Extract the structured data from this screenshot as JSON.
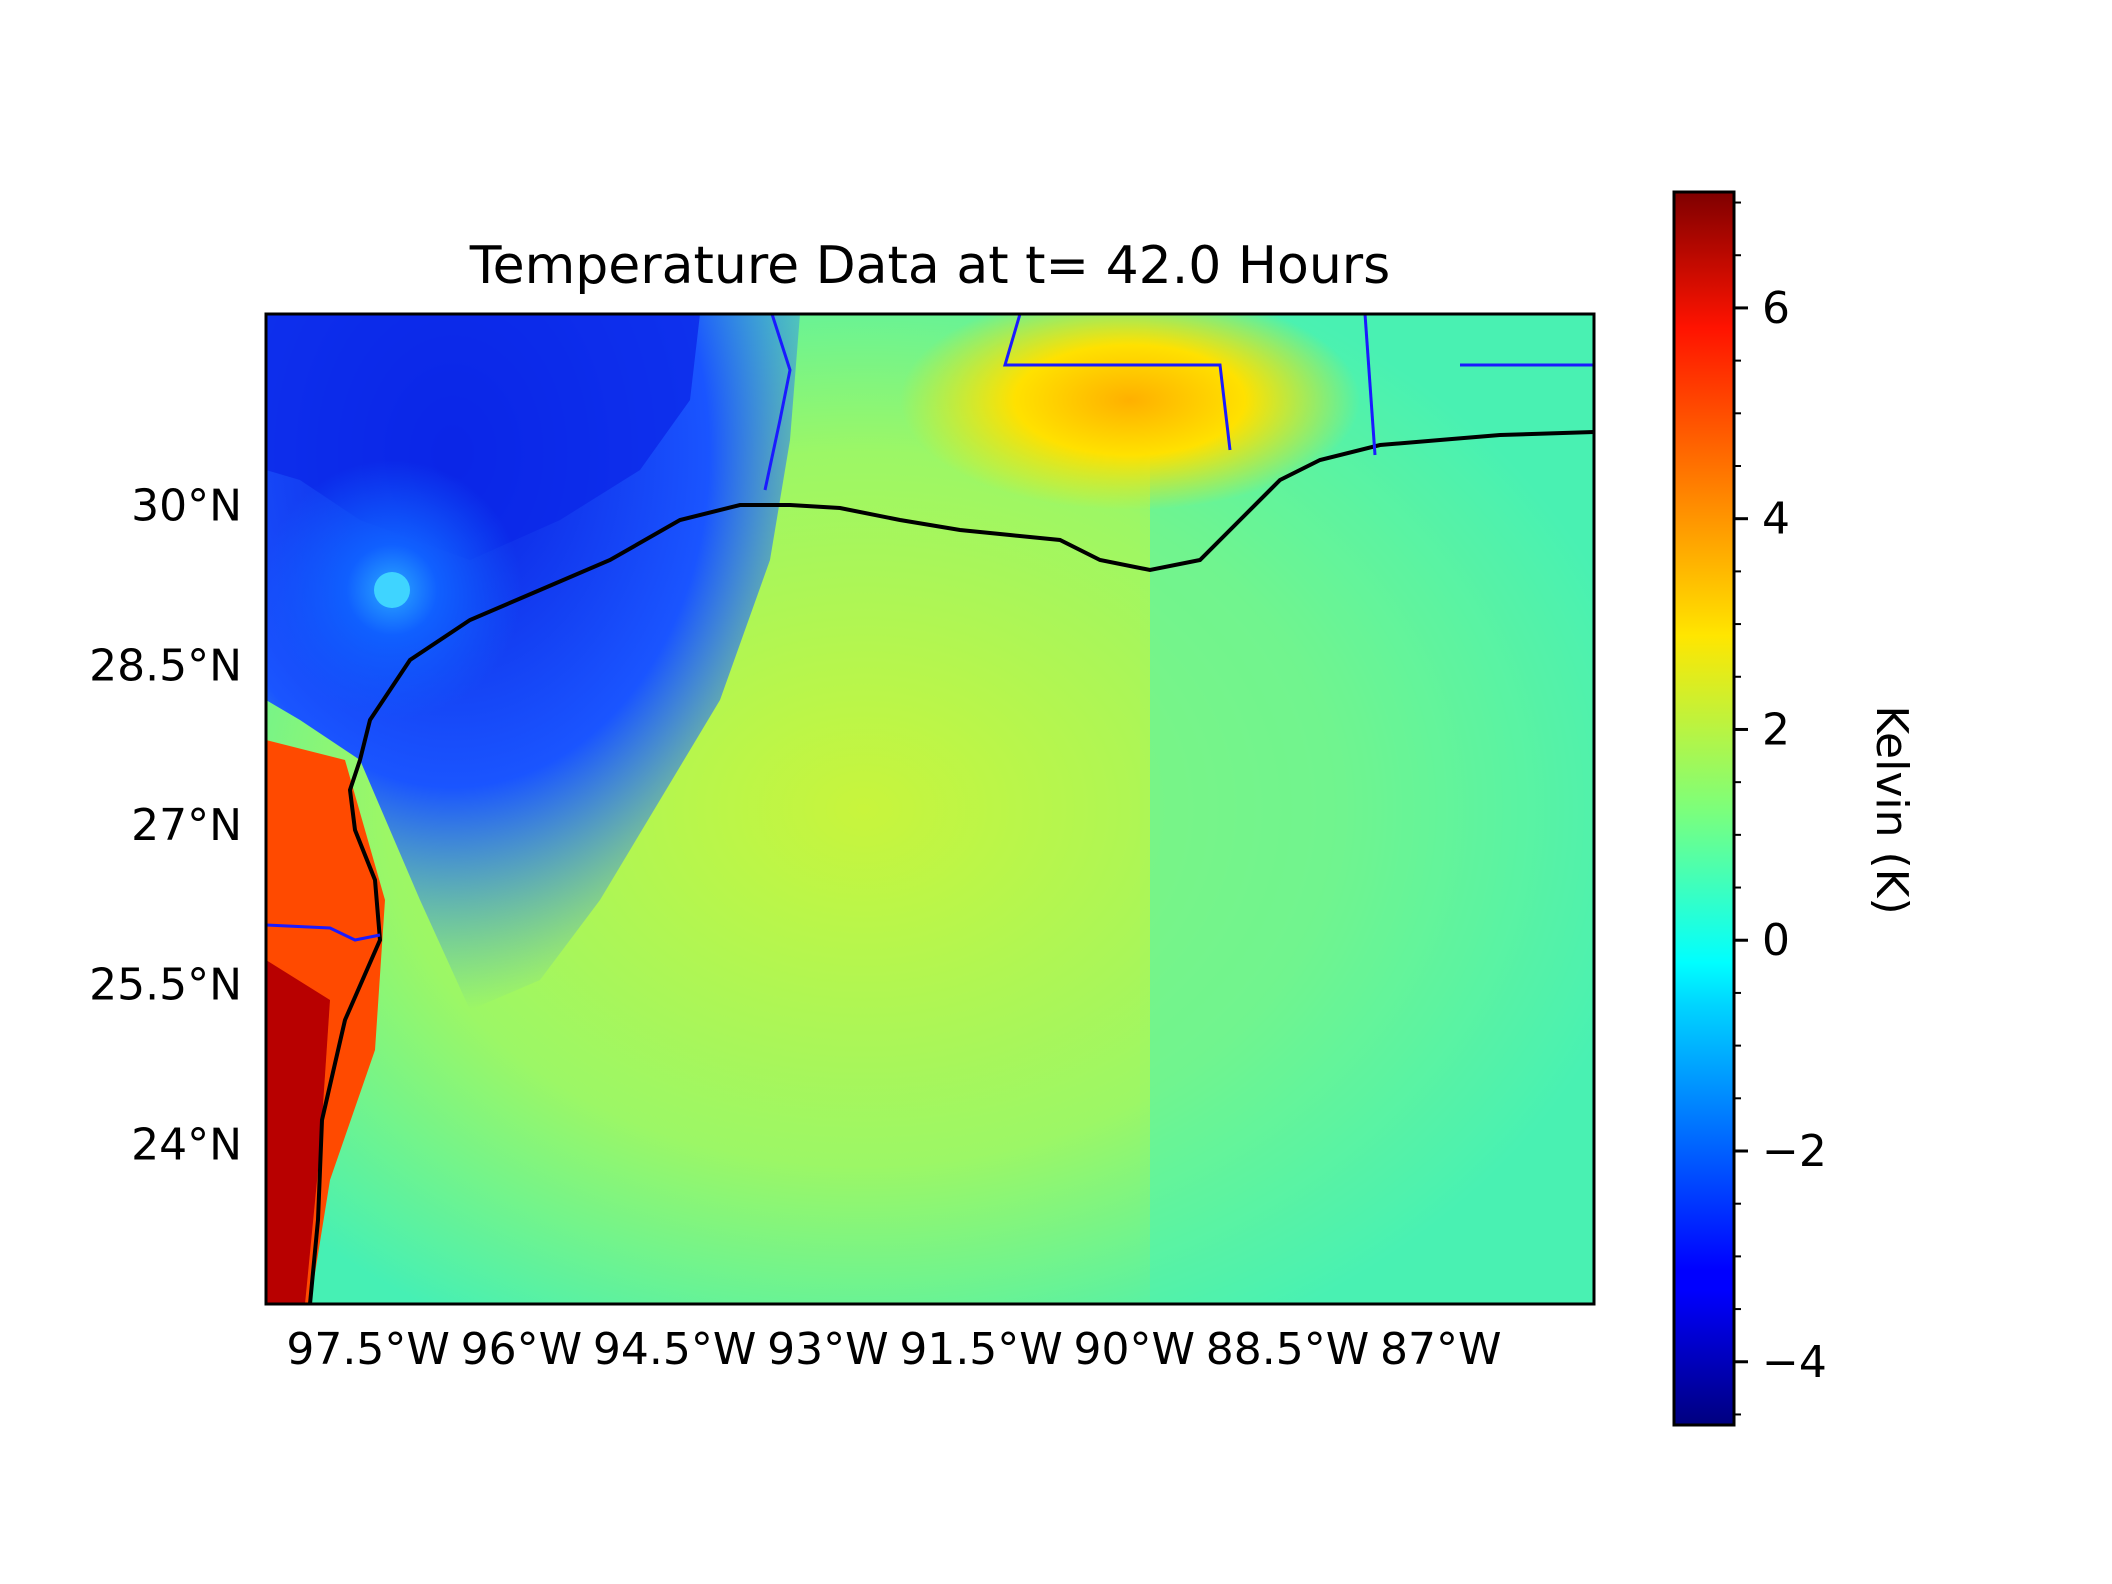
{
  "title": "Temperature Data at t= 42.0 Hours",
  "map": {
    "lon_range": [
      -98.5,
      -85.5
    ],
    "lat_range": [
      22.5,
      31.8
    ],
    "x_ticks": [
      {
        "value": -97.5,
        "label": "97.5°W"
      },
      {
        "value": -96.0,
        "label": "96°W"
      },
      {
        "value": -94.5,
        "label": "94.5°W"
      },
      {
        "value": -93.0,
        "label": "93°W"
      },
      {
        "value": -91.5,
        "label": "91.5°W"
      },
      {
        "value": -90.0,
        "label": "90°W"
      },
      {
        "value": -88.5,
        "label": "88.5°W"
      },
      {
        "value": -87.0,
        "label": "87°W"
      }
    ],
    "y_ticks": [
      {
        "value": 30.0,
        "label": "30°N"
      },
      {
        "value": 28.5,
        "label": "28.5°N"
      },
      {
        "value": 27.0,
        "label": "27°N"
      },
      {
        "value": 25.5,
        "label": "25.5°N"
      },
      {
        "value": 24.0,
        "label": "24°N"
      }
    ],
    "coastline_color": "#000000",
    "border_color": "#1a1aff"
  },
  "colorbar": {
    "label": "Kelvin (K)",
    "colormap": "jet",
    "range": [
      -4.6,
      7.1
    ],
    "ticks": [
      {
        "value": 6,
        "label": "6"
      },
      {
        "value": 4,
        "label": "4"
      },
      {
        "value": 2,
        "label": "2"
      },
      {
        "value": 0,
        "label": "0"
      },
      {
        "value": -2,
        "label": "−2"
      },
      {
        "value": -4,
        "label": "−4"
      }
    ],
    "minor_step": 0.5
  }
}
